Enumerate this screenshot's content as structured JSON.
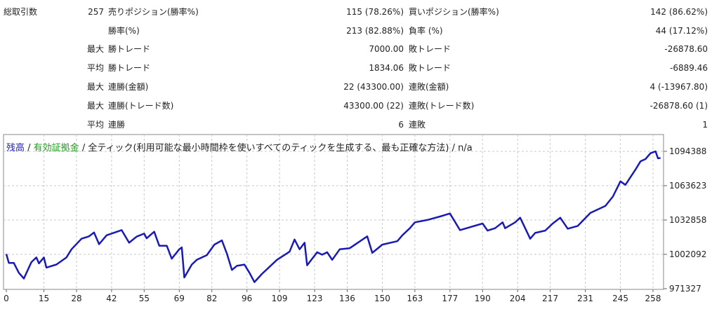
{
  "stats": [
    {
      "c1": "総取引数",
      "c2": "257",
      "c3": "売りポジション(勝率%)",
      "c4": "115 (78.26%)",
      "c5": "買いポジション(勝率%)",
      "c6": "142 (86.62%)"
    },
    {
      "c1": "",
      "c2": "",
      "c3": "勝率(%)",
      "c4": "213 (82.88%)",
      "c5": "負率 (%)",
      "c6": "44 (17.12%)"
    },
    {
      "c1": "",
      "c2": "最大",
      "c3": "勝トレード",
      "c4": "7000.00",
      "c5": "敗トレード",
      "c6": "-26878.60"
    },
    {
      "c1": "",
      "c2": "平均",
      "c3": "勝トレード",
      "c4": "1834.06",
      "c5": "敗トレード",
      "c6": "-6889.46"
    },
    {
      "c1": "",
      "c2": "最大",
      "c3": "連勝(金額)",
      "c4": "22 (43300.00)",
      "c5": "連敗(金額)",
      "c6": "4 (-13967.80)"
    },
    {
      "c1": "",
      "c2": "最大",
      "c3": "連勝(トレード数)",
      "c4": "43300.00 (22)",
      "c5": "連敗(トレード数)",
      "c6": "-26878.60 (1)"
    },
    {
      "c1": "",
      "c2": "平均",
      "c3": "連勝",
      "c4": "6",
      "c5": "連敗",
      "c6": "1"
    }
  ],
  "legend": {
    "balance": "残高",
    "sep1": " / ",
    "equity": "有効証拠金",
    "rest": " / 全ティック(利用可能な最小時間枠を使いすべてのティックを生成する、最も正確な方法) / n/a"
  },
  "colors": {
    "balance": "#1a1ab4",
    "equity": "#1aa01a",
    "grid": "#c8c8c8"
  },
  "chart_data": {
    "type": "line",
    "title": "",
    "xlabel": "",
    "ylabel": "",
    "x_ticks": [
      0,
      15,
      28,
      42,
      55,
      69,
      82,
      96,
      109,
      123,
      136,
      150,
      163,
      177,
      190,
      204,
      217,
      231,
      245,
      258
    ],
    "y_ticks": [
      971327,
      1002092,
      1032858,
      1063623,
      1094388
    ],
    "xlim": [
      0,
      262
    ],
    "ylim": [
      971327,
      1100000
    ],
    "grid": true,
    "series": [
      {
        "name": "残高",
        "points": [
          [
            0,
            1002400
          ],
          [
            1,
            994400
          ],
          [
            3,
            994400
          ],
          [
            5,
            985600
          ],
          [
            7,
            980400
          ],
          [
            10,
            995100
          ],
          [
            12,
            999300
          ],
          [
            13,
            994000
          ],
          [
            15,
            999300
          ],
          [
            16,
            990200
          ],
          [
            20,
            993000
          ],
          [
            24,
            999300
          ],
          [
            26,
            1006600
          ],
          [
            30,
            1016100
          ],
          [
            33,
            1018200
          ],
          [
            35,
            1021700
          ],
          [
            37,
            1011200
          ],
          [
            40,
            1019200
          ],
          [
            46,
            1023800
          ],
          [
            49,
            1012500
          ],
          [
            52,
            1018000
          ],
          [
            55,
            1020700
          ],
          [
            56,
            1016500
          ],
          [
            59,
            1022400
          ],
          [
            61,
            1009800
          ],
          [
            64,
            1009800
          ],
          [
            66,
            998200
          ],
          [
            69,
            1006600
          ],
          [
            70,
            1008300
          ],
          [
            71,
            981400
          ],
          [
            74,
            993000
          ],
          [
            76,
            997200
          ],
          [
            80,
            1001400
          ],
          [
            83,
            1010800
          ],
          [
            86,
            1014600
          ],
          [
            88,
            1002800
          ],
          [
            90,
            988100
          ],
          [
            92,
            991800
          ],
          [
            95,
            992900
          ],
          [
            97,
            985600
          ],
          [
            99,
            977200
          ],
          [
            102,
            984600
          ],
          [
            108,
            997200
          ],
          [
            113,
            1004500
          ],
          [
            115,
            1015400
          ],
          [
            117,
            1006600
          ],
          [
            119,
            1012500
          ],
          [
            120,
            992300
          ],
          [
            124,
            1004000
          ],
          [
            126,
            1001800
          ],
          [
            128,
            1004000
          ],
          [
            130,
            997200
          ],
          [
            133,
            1006600
          ],
          [
            137,
            1007600
          ],
          [
            144,
            1018200
          ],
          [
            146,
            1003400
          ],
          [
            150,
            1010800
          ],
          [
            156,
            1013900
          ],
          [
            158,
            1019200
          ],
          [
            161,
            1025500
          ],
          [
            163,
            1030800
          ],
          [
            168,
            1032900
          ],
          [
            173,
            1036000
          ],
          [
            177,
            1038700
          ],
          [
            181,
            1023800
          ],
          [
            190,
            1029700
          ],
          [
            192,
            1023400
          ],
          [
            195,
            1025500
          ],
          [
            198,
            1030800
          ],
          [
            199,
            1025500
          ],
          [
            203,
            1030800
          ],
          [
            205,
            1034900
          ],
          [
            209,
            1016100
          ],
          [
            211,
            1021300
          ],
          [
            215,
            1023400
          ],
          [
            218,
            1029700
          ],
          [
            221,
            1034900
          ],
          [
            224,
            1025100
          ],
          [
            228,
            1027600
          ],
          [
            233,
            1039200
          ],
          [
            239,
            1045500
          ],
          [
            242,
            1053900
          ],
          [
            245,
            1067500
          ],
          [
            247,
            1064400
          ],
          [
            251,
            1078000
          ],
          [
            253,
            1085400
          ],
          [
            255,
            1087500
          ],
          [
            257,
            1092700
          ],
          [
            259,
            1094400
          ],
          [
            260,
            1088100
          ],
          [
            261,
            1088500
          ]
        ]
      }
    ]
  }
}
